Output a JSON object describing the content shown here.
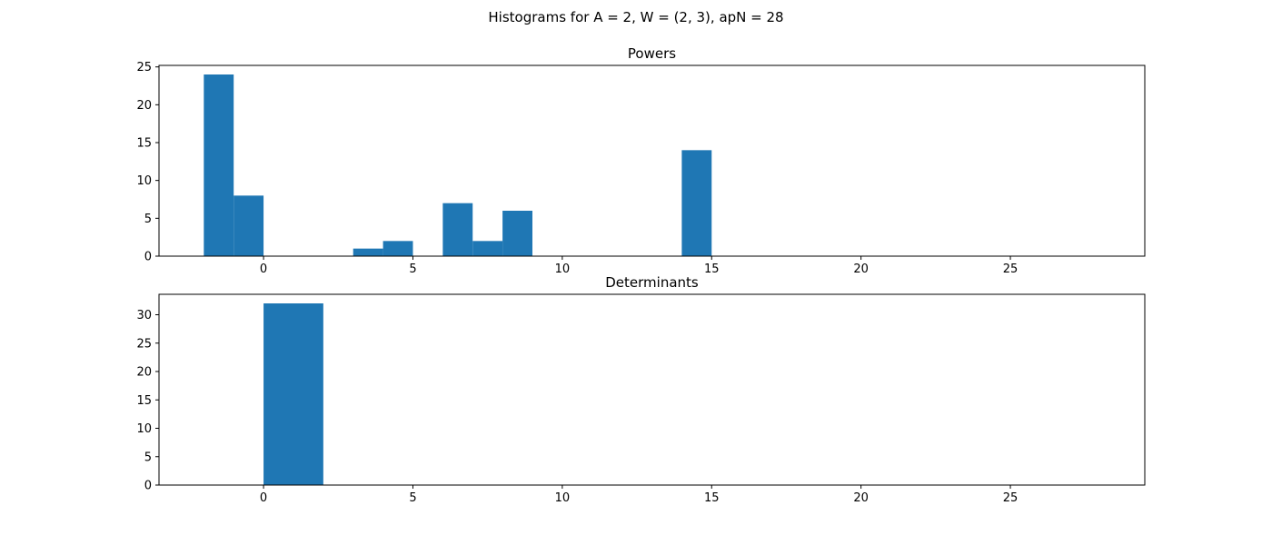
{
  "figure": {
    "suptitle": "Histograms for A = 2, W = (2, 3), apN = 28",
    "bar_color": "#1f77b4",
    "background": "#ffffff"
  },
  "chart_data": [
    {
      "type": "bar",
      "title": "Powers",
      "xlabel": "",
      "ylabel": "",
      "xlim": [
        -3.5,
        29.5
      ],
      "ylim": [
        0,
        25.2
      ],
      "xticks": [
        0,
        5,
        10,
        15,
        20,
        25
      ],
      "yticks": [
        0,
        5,
        10,
        15,
        20,
        25
      ],
      "grid": false,
      "bins": [
        {
          "x0": -2,
          "x1": -1,
          "count": 24
        },
        {
          "x0": -1,
          "x1": 0,
          "count": 8
        },
        {
          "x0": 3,
          "x1": 4,
          "count": 1
        },
        {
          "x0": 4,
          "x1": 5,
          "count": 2
        },
        {
          "x0": 6,
          "x1": 7,
          "count": 7
        },
        {
          "x0": 7,
          "x1": 8,
          "count": 2
        },
        {
          "x0": 8,
          "x1": 9,
          "count": 6
        },
        {
          "x0": 14,
          "x1": 15,
          "count": 14
        }
      ]
    },
    {
      "type": "bar",
      "title": "Determinants",
      "xlabel": "",
      "ylabel": "",
      "xlim": [
        -3.5,
        29.5
      ],
      "ylim": [
        0,
        33.6
      ],
      "xticks": [
        0,
        5,
        10,
        15,
        20,
        25
      ],
      "yticks": [
        0,
        5,
        10,
        15,
        20,
        25,
        30
      ],
      "grid": false,
      "bins": [
        {
          "x0": 0,
          "x1": 2,
          "count": 32
        }
      ]
    }
  ]
}
